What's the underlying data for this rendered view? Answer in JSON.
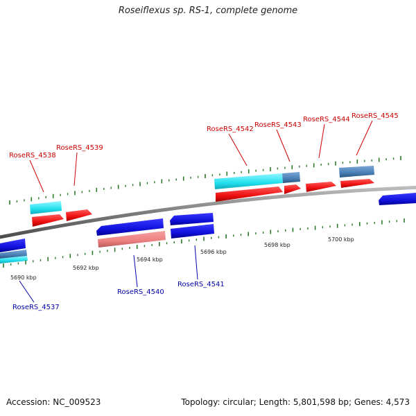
{
  "header": {
    "title": "Roseiflexus sp. RS-1, complete genome"
  },
  "footer": {
    "accession": "Accession: NC_009523",
    "summary": "Topology: circular; Length: 5,801,598 bp; Genes: 4,573"
  },
  "scale": {
    "ticks": [
      "5690 kbp",
      "5692 kbp",
      "5694 kbp",
      "5696 kbp",
      "5698 kbp",
      "5700 kbp"
    ]
  },
  "colors": {
    "forward_cds": "#ee1111",
    "forward_cds_light": "#f08080",
    "reverse_cds": "#1111dd",
    "gene_cyan": "#22e0ee",
    "gene_steel": "#4a7fb5",
    "forward_label": "#cc0000",
    "reverse_label": "#0000aa",
    "backbone": "#888888",
    "tick_marks": "#2a7a2a"
  },
  "genes": {
    "forward": [
      "RoseRS_4538",
      "RoseRS_4539",
      "RoseRS_4542",
      "RoseRS_4543",
      "RoseRS_4544",
      "RoseRS_4545"
    ],
    "reverse": [
      "RoseRS_4537",
      "RoseRS_4540",
      "RoseRS_4541"
    ]
  }
}
